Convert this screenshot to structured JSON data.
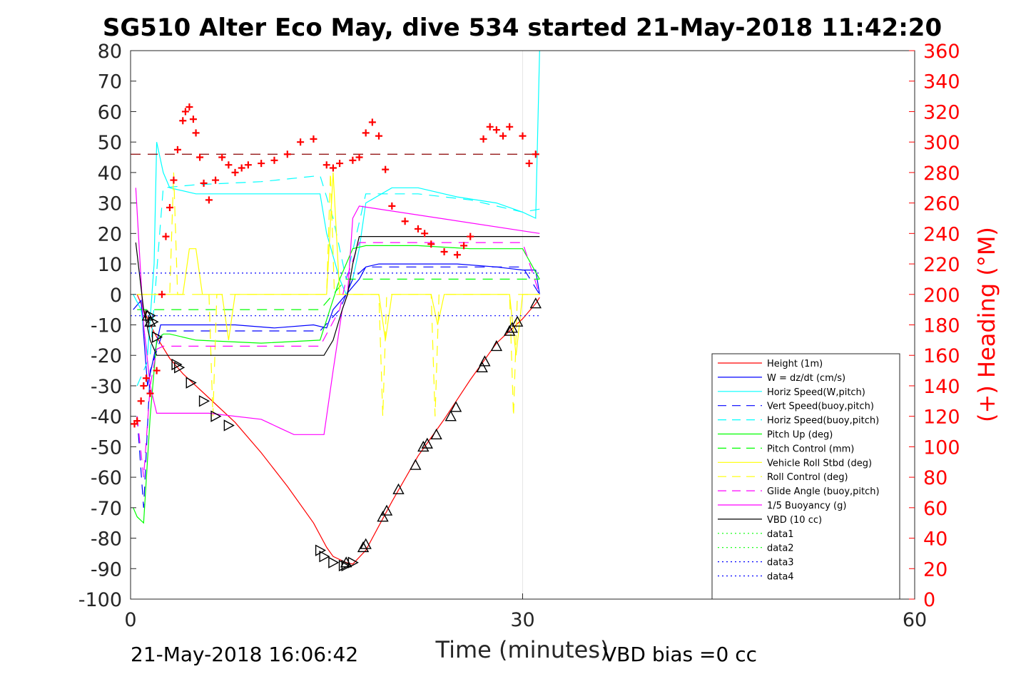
{
  "chart_data": {
    "type": "line",
    "title": "SG510 Alter Eco May, dive 534 started 21-May-2018 11:42:20",
    "xlabel": "Time (minutes)",
    "ylabel_right": "(+) Heading (°M)",
    "xlim": [
      0,
      60
    ],
    "ylim": [
      -100,
      80
    ],
    "ylim_right": [
      0,
      360
    ],
    "x_ticks": [
      0,
      30,
      60
    ],
    "y_ticks": [
      -100,
      -90,
      -80,
      -70,
      -60,
      -50,
      -40,
      -30,
      -20,
      -10,
      0,
      10,
      20,
      30,
      40,
      50,
      60,
      70,
      80
    ],
    "y_ticks_right": [
      0,
      20,
      40,
      60,
      80,
      100,
      120,
      140,
      160,
      180,
      200,
      220,
      240,
      260,
      280,
      300,
      320,
      340,
      360
    ],
    "grid": "x at 30 only",
    "legend_position": "lower-right",
    "footer_left": "21-May-2018 16:06:42",
    "footer_right": "VBD bias =0 cc",
    "series": [
      {
        "name": "Height (1m)",
        "color": "#ff0000",
        "style": "solid",
        "x": [
          0.5,
          1.0,
          1.5,
          2.0,
          3.0,
          4.0,
          6.0,
          8.0,
          10.0,
          12.0,
          14.0,
          15.0,
          15.5,
          16.0,
          16.5,
          17.0,
          18.0,
          20.0,
          22.0,
          24.0,
          26.0,
          27.0,
          28.0,
          29.0,
          30.0,
          31.0,
          31.3
        ],
        "values": [
          0,
          -5,
          -10,
          -14,
          -21,
          -26,
          -34,
          -42,
          -52,
          -63,
          -75,
          -83,
          -86,
          -87,
          -88,
          -88.5,
          -84,
          -68,
          -53,
          -41,
          -28,
          -22,
          -16,
          -12,
          -8,
          -3,
          -1
        ]
      },
      {
        "name": "W = dz/dt (cm/s)",
        "color": "#0000ff",
        "style": "solid",
        "x": [
          0.2,
          0.8,
          1.3,
          1.8,
          2.3,
          3,
          5,
          8,
          11,
          14,
          15,
          15.5,
          16.5,
          17.5,
          18,
          19,
          22,
          25,
          28,
          30,
          31,
          31.3
        ],
        "values": [
          -5,
          -2,
          -30,
          -20,
          -10,
          -10,
          -10,
          -10,
          -11,
          -10,
          -11,
          -5,
          0,
          5,
          9,
          10,
          10,
          10,
          9,
          8,
          8,
          0
        ]
      },
      {
        "name": "Horiz Speed(W,pitch)",
        "color": "#00ffff",
        "style": "solid",
        "x": [
          0.2,
          0.8,
          1.3,
          1.8,
          2.0,
          2.5,
          3,
          5,
          8,
          11,
          13.5,
          14.5,
          15,
          16,
          16.5,
          17,
          17.5,
          18,
          20,
          22,
          25,
          28,
          30,
          31,
          31.3
        ],
        "values": [
          0,
          -5,
          -20,
          10,
          50,
          40,
          35,
          33,
          33,
          33,
          33,
          33,
          20,
          5,
          0,
          5,
          15,
          30,
          35,
          35,
          32,
          30,
          27,
          25,
          80
        ]
      },
      {
        "name": "Vert Speed(buoy,pitch)",
        "color": "#0000ff",
        "style": "dash",
        "x": [
          0.5,
          1.0,
          1.5,
          2.5,
          5,
          10,
          14.5,
          16,
          17,
          18,
          22,
          26,
          30,
          31.3
        ],
        "values": [
          -40,
          -70,
          -25,
          -12,
          -12,
          -12,
          -12,
          -5,
          5,
          9,
          9,
          9,
          9,
          0
        ]
      },
      {
        "name": "Horiz Speed(buoy,pitch)",
        "color": "#00ffff",
        "style": "dash",
        "x": [
          0.5,
          1.5,
          2.5,
          5,
          10,
          14.5,
          15.5,
          16.5,
          18,
          22,
          26,
          30,
          31.3
        ],
        "values": [
          -30,
          -20,
          35,
          36,
          37,
          39,
          25,
          5,
          33,
          33,
          31,
          27,
          28
        ]
      },
      {
        "name": "Pitch Up (deg)",
        "color": "#00ff00",
        "style": "solid",
        "x": [
          0.2,
          0.5,
          1.0,
          1.5,
          2.0,
          2.5,
          3,
          5,
          10,
          14.5,
          16,
          17,
          18,
          22,
          26,
          30,
          31.3
        ],
        "values": [
          -70,
          -73,
          -75,
          -40,
          -15,
          -13,
          -13,
          -15,
          -16,
          -15,
          5,
          15,
          16,
          16,
          15,
          15,
          5
        ]
      },
      {
        "name": "Pitch Control (mm)",
        "color": "#00ff00",
        "style": "dash",
        "x": [
          0.5,
          2.0,
          14.5,
          16.5,
          31.3
        ],
        "values": [
          -5,
          -5,
          -5,
          5,
          5
        ]
      },
      {
        "name": "Vehicle Roll Stbd (deg)",
        "color": "#ffff00",
        "style": "solid",
        "x": [
          0.5,
          2.0,
          4.0,
          4.5,
          5.0,
          5.5,
          7.0,
          7.5,
          8.0,
          15.0,
          15.5,
          16.0,
          19.0,
          19.5,
          20.0,
          23.0,
          23.5,
          24.0,
          29.0,
          29.5,
          30.0,
          31.3
        ],
        "values": [
          0,
          0,
          0,
          15,
          15,
          0,
          0,
          -15,
          0,
          0,
          40,
          0,
          0,
          -15,
          0,
          0,
          -10,
          0,
          0,
          -20,
          0,
          0
        ]
      },
      {
        "name": "Roll Control (deg)",
        "color": "#ffff00",
        "style": "dash",
        "x": [
          0.5,
          3.0,
          3.3,
          3.6,
          6.0,
          6.3,
          6.6,
          15.0,
          15.3,
          15.6,
          19.0,
          19.3,
          19.6,
          23.0,
          23.3,
          23.6,
          29.0,
          29.3,
          29.6,
          31.3
        ],
        "values": [
          0,
          0,
          40,
          0,
          0,
          -40,
          0,
          0,
          40,
          0,
          0,
          -40,
          0,
          0,
          -40,
          0,
          0,
          -40,
          0,
          0
        ]
      },
      {
        "name": "Glide Angle (buoy,pitch)",
        "color": "#ff00ff",
        "style": "dash",
        "x": [
          0.5,
          1.0,
          1.5,
          2.0,
          2.5,
          5,
          10,
          14.5,
          16,
          16.5,
          17.5,
          22,
          26,
          30,
          31.3
        ],
        "values": [
          -40,
          -60,
          -30,
          -18,
          -17,
          -17,
          -17,
          -17,
          -5,
          5,
          17,
          17,
          17,
          17,
          0
        ]
      },
      {
        "name": "1/5 Buoyancy (g)",
        "color": "#ff00ff",
        "style": "solid",
        "x": [
          0.4,
          1.0,
          1.5,
          2.0,
          2.5,
          6,
          10,
          11.5,
          12.5,
          14,
          14.8,
          15.5,
          16.2,
          16.6,
          17.0,
          17.5,
          31.3
        ],
        "values": [
          35,
          -10,
          -30,
          -39,
          -39,
          -39,
          -41,
          -44,
          -46,
          -46,
          -46,
          -25,
          -5,
          0,
          25,
          29,
          20
        ]
      },
      {
        "name": "VBD (10 cc)",
        "color": "#000000",
        "style": "solid",
        "x": [
          0.4,
          1.0,
          1.5,
          2.0,
          2.5,
          14.8,
          15.5,
          16.2,
          16.6,
          17.0,
          17.5,
          31.3
        ],
        "values": [
          17,
          -5,
          -15,
          -20,
          -20,
          -20,
          -15,
          -5,
          0,
          10,
          19,
          19
        ]
      },
      {
        "name": "data1",
        "color": "#00ff00",
        "style": "dot",
        "x": [],
        "values": []
      },
      {
        "name": "data2",
        "color": "#00ff00",
        "style": "dot",
        "x": [],
        "values": []
      },
      {
        "name": "data3",
        "color": "#0000ff",
        "style": "dot",
        "x": [
          0,
          31.3
        ],
        "values": [
          7,
          7
        ]
      },
      {
        "name": "data4",
        "color": "#0000ff",
        "style": "dot",
        "x": [
          0,
          31.3
        ],
        "values": [
          -7,
          -7
        ]
      }
    ],
    "reference_line": {
      "color": "#8b0000",
      "style": "dash",
      "x": [
        0,
        31.3
      ],
      "heading": 292
    },
    "heading_markers": {
      "color": "#ff0000",
      "marker": "+",
      "x": [
        0.3,
        0.5,
        0.8,
        1.0,
        1.2,
        1.5,
        2.0,
        2.4,
        2.7,
        3.0,
        3.3,
        3.6,
        4.0,
        4.2,
        4.5,
        4.8,
        5.0,
        5.3,
        5.6,
        6.0,
        6.5,
        7.0,
        7.5,
        8.0,
        8.5,
        9.0,
        10,
        11,
        12,
        13,
        14,
        15,
        15.5,
        16,
        17,
        17.5,
        18,
        18.5,
        19,
        19.5,
        20,
        21,
        22,
        22.5,
        23,
        24,
        25,
        25.5,
        26,
        27,
        27.5,
        28,
        28.5,
        29,
        30,
        30.5,
        31
      ],
      "values": [
        115,
        117,
        130,
        140,
        145,
        135,
        150,
        200,
        238,
        257,
        275,
        295,
        314,
        320,
        323,
        315,
        306,
        290,
        273,
        262,
        275,
        290,
        285,
        280,
        283,
        285,
        286,
        288,
        292,
        300,
        302,
        285,
        283,
        286,
        288,
        290,
        306,
        313,
        304,
        282,
        258,
        248,
        243,
        240,
        233,
        228,
        226,
        232,
        238,
        302,
        310,
        308,
        304,
        310,
        304,
        286,
        292
      ]
    },
    "triangle_markers": {
      "color": "#000000",
      "down_x": [
        1.5,
        1.7,
        2.0,
        3.5,
        3.7,
        4.6,
        5.6,
        6.5,
        7.5,
        14.5,
        14.8,
        15.5,
        16.3,
        16.5,
        17.0
      ],
      "down_y": [
        -7,
        -9,
        -14,
        -23,
        -24,
        -29,
        -35,
        -40,
        -43,
        -84,
        -86,
        -88,
        -89,
        -89,
        -88
      ],
      "up_x": [
        1.3,
        1.5,
        16.5,
        17.8,
        18.0,
        19.3,
        19.6,
        20.5,
        21.8,
        22.4,
        22.7,
        23.4,
        24.5,
        24.9,
        26.9,
        27.1,
        28.0,
        29.0,
        29.2,
        29.6,
        31.0
      ],
      "up_y": [
        -7,
        -9,
        -88,
        -83,
        -82,
        -73,
        -71,
        -64,
        -56,
        -50,
        -49,
        -46,
        -40,
        -37,
        -24,
        -22,
        -17,
        -12,
        -11,
        -9,
        -3
      ]
    }
  }
}
